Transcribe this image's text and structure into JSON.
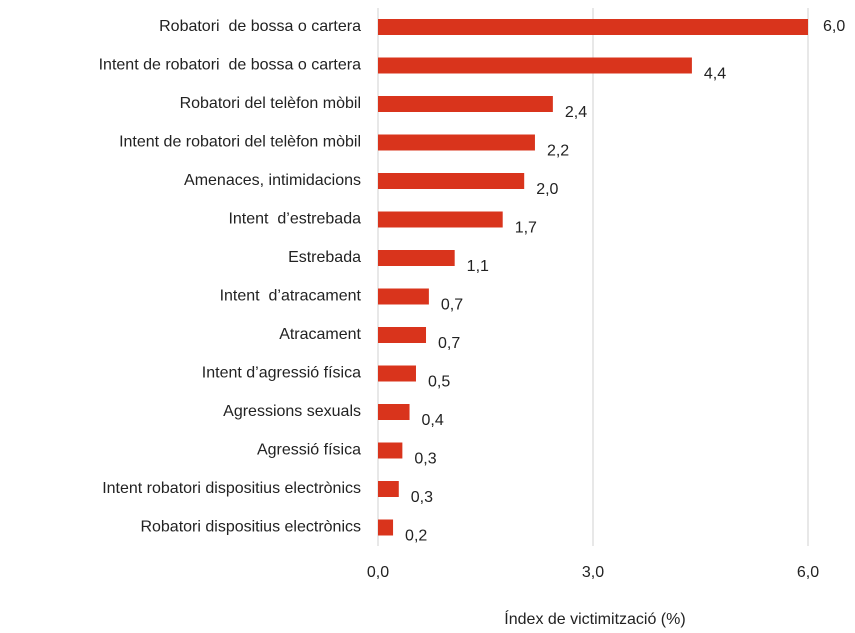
{
  "chart_data": {
    "type": "hbar",
    "categories": [
      "Robatori  de bossa o cartera",
      "Intent de robatori  de bossa o cartera",
      "Robatori del telèfon mòbil",
      "Intent de robatori del telèfon mòbil",
      "Amenaces, intimidacions",
      "Intent  d’estrebada",
      "Estrebada",
      "Intent  d’atracament",
      "Atracament",
      "Intent d’agressió física",
      "Agressions sexuals",
      "Agressió física",
      "Intent robatori dispositius electrònics",
      "Robatori dispositius electrònics"
    ],
    "values": [
      6.0,
      4.38,
      2.44,
      2.19,
      2.04,
      1.74,
      1.07,
      0.71,
      0.67,
      0.53,
      0.44,
      0.34,
      0.29,
      0.21
    ],
    "value_labels": [
      "6,0",
      "4,4",
      "2,4",
      "2,2",
      "2,0",
      "1,7",
      "1,1",
      "0,7",
      "0,7",
      "0,5",
      "0,4",
      "0,3",
      "0,3",
      "0,2"
    ],
    "color": "#d9341c",
    "xlim": [
      0,
      6
    ],
    "xticks": [
      {
        "value": 0,
        "label": "0,0"
      },
      {
        "value": 3,
        "label": "3,0"
      },
      {
        "value": 6,
        "label": "6,0"
      }
    ],
    "xlabel": "Índex de victimització (%)",
    "grid": true
  }
}
